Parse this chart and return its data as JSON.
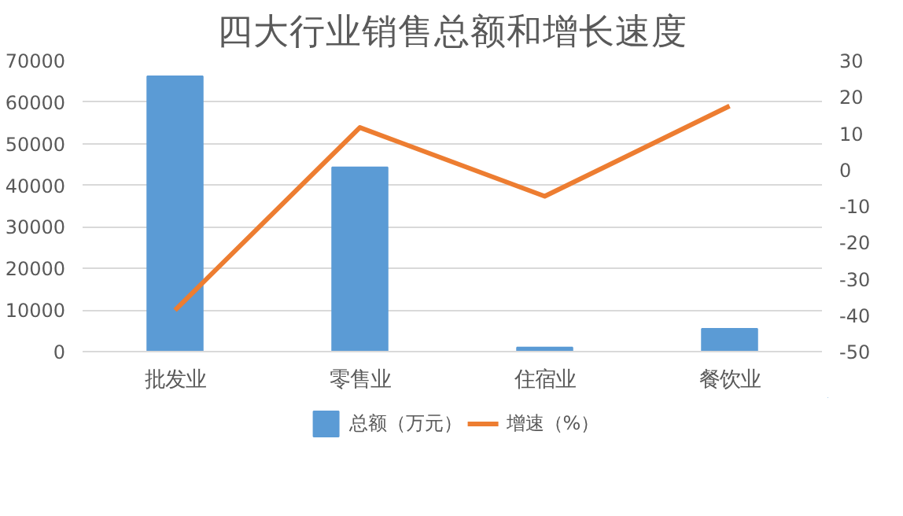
{
  "chart_data": {
    "type": "bar",
    "title": "四大行业销售总额和增长速度",
    "categories": [
      "批发业",
      "零售业",
      "住宿业",
      "餐饮业"
    ],
    "series": [
      {
        "name": "总额（万元）",
        "color": "#5b9bd5",
        "type": "bar",
        "values": [
          66200,
          44300,
          1000,
          5500
        ]
      },
      {
        "name": "增速（%）",
        "color": "#ed7d31",
        "type": "line",
        "axis": "y2",
        "values": [
          -38.6,
          11.6,
          -7.3,
          17.5
        ]
      }
    ],
    "ylim": [
      0,
      70000
    ],
    "yticks": [
      0,
      10000,
      20000,
      30000,
      40000,
      50000,
      60000,
      70000
    ],
    "y2lim": [
      -50,
      30
    ],
    "y2ticks": [
      -50,
      -40,
      -30,
      -20,
      -10,
      0,
      10,
      20,
      30
    ],
    "grid": "y",
    "legend": "bottom",
    "marker": "none",
    "line_style": "solid"
  }
}
